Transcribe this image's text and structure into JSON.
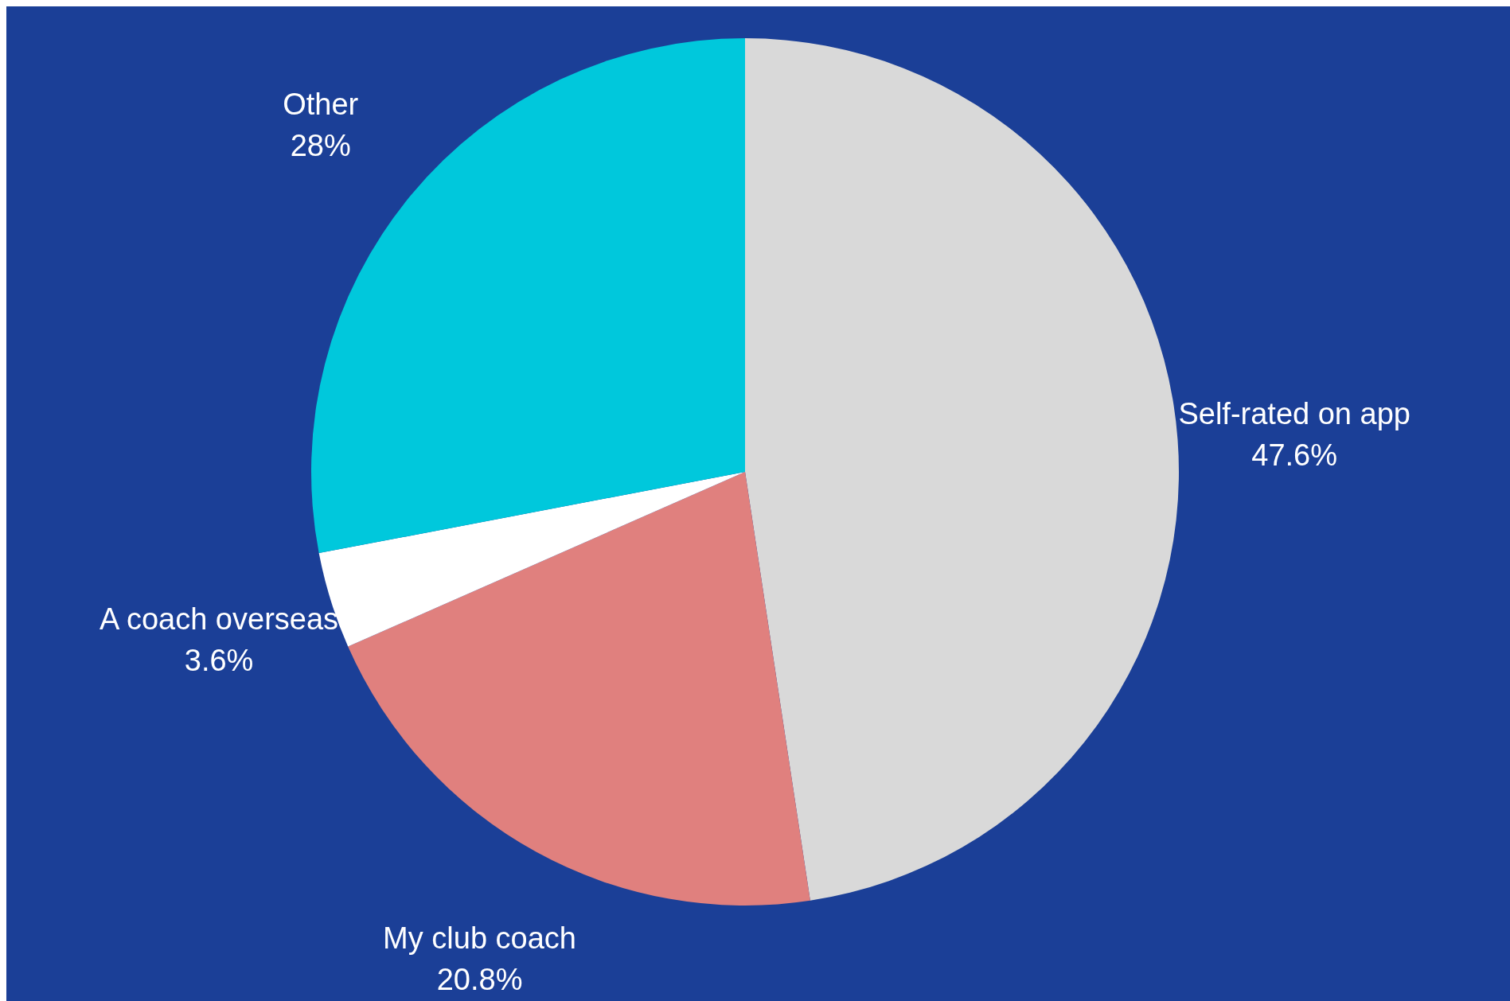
{
  "chart_data": {
    "type": "pie",
    "categories": [
      "Self-rated on app",
      "My club coach",
      "A coach overseas",
      "Other"
    ],
    "values": [
      47.6,
      20.8,
      3.6,
      28
    ],
    "colors": [
      "#d9d9d9",
      "#e0807e",
      "#ffffff",
      "#00c8dc"
    ],
    "value_labels": [
      "47.6%",
      "20.8%",
      "3.6%",
      "28%"
    ]
  }
}
